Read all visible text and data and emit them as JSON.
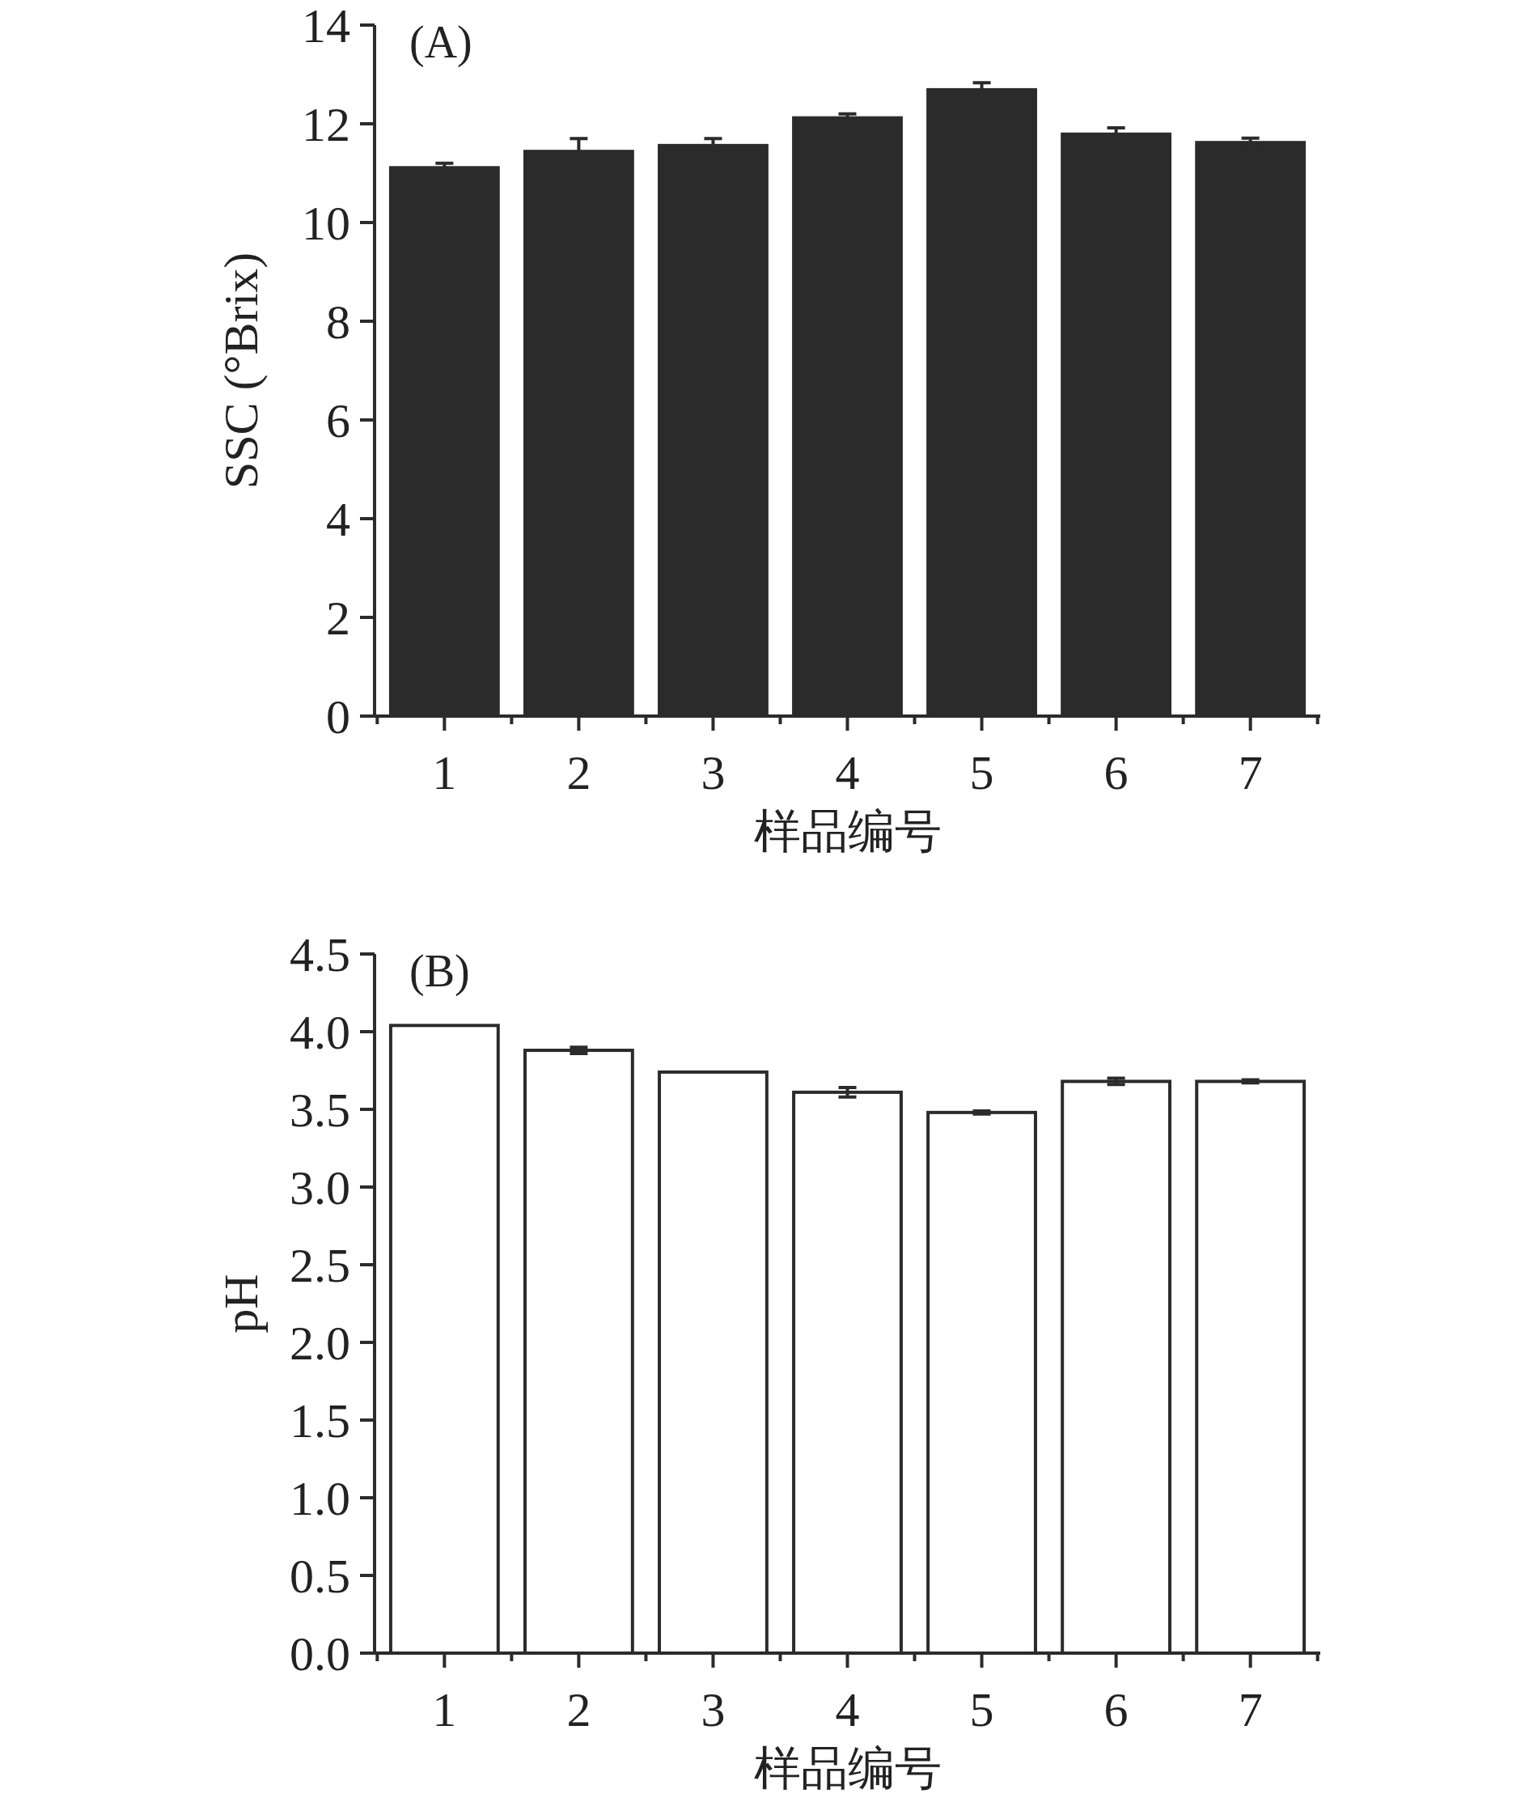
{
  "chart_data": [
    {
      "type": "bar",
      "title": "(A)",
      "xlabel": "样品编号",
      "ylabel": "SSC (°Brix)",
      "categories": [
        "1",
        "2",
        "3",
        "4",
        "5",
        "6",
        "7"
      ],
      "values": [
        11.11,
        11.44,
        11.56,
        12.12,
        12.69,
        11.79,
        11.62
      ],
      "errors": [
        0.09,
        0.26,
        0.14,
        0.08,
        0.14,
        0.13,
        0.09
      ],
      "color": "#2b2b2b",
      "ylim": [
        0,
        14
      ],
      "yticks": [
        0,
        2,
        4,
        6,
        8,
        10,
        12,
        14
      ]
    },
    {
      "type": "bar",
      "title": "(B)",
      "xlabel": "样品编号",
      "ylabel": "pH",
      "categories": [
        "1",
        "2",
        "3",
        "4",
        "5",
        "6",
        "7"
      ],
      "values": [
        4.04,
        3.88,
        3.74,
        3.61,
        3.48,
        3.68,
        3.68
      ],
      "errors": [
        null,
        0.02,
        null,
        0.03,
        0.01,
        0.02,
        0.01
      ],
      "color": "#ffffff",
      "ylim": [
        0,
        4.5
      ],
      "yticks": [
        {
          "value": 0,
          "label": "0.0"
        },
        {
          "value": 0.5,
          "label": "0.5"
        },
        {
          "value": 1,
          "label": "1.0"
        },
        {
          "value": 1.5,
          "label": "1.5"
        },
        {
          "value": 2,
          "label": "2.0"
        },
        {
          "value": 2.5,
          "label": "2.5"
        },
        {
          "value": 3,
          "label": "3.0"
        },
        {
          "value": 3.5,
          "label": "3.5"
        },
        {
          "value": 4,
          "label": "4.0"
        },
        {
          "value": 4.5,
          "label": "4.5"
        }
      ]
    }
  ]
}
